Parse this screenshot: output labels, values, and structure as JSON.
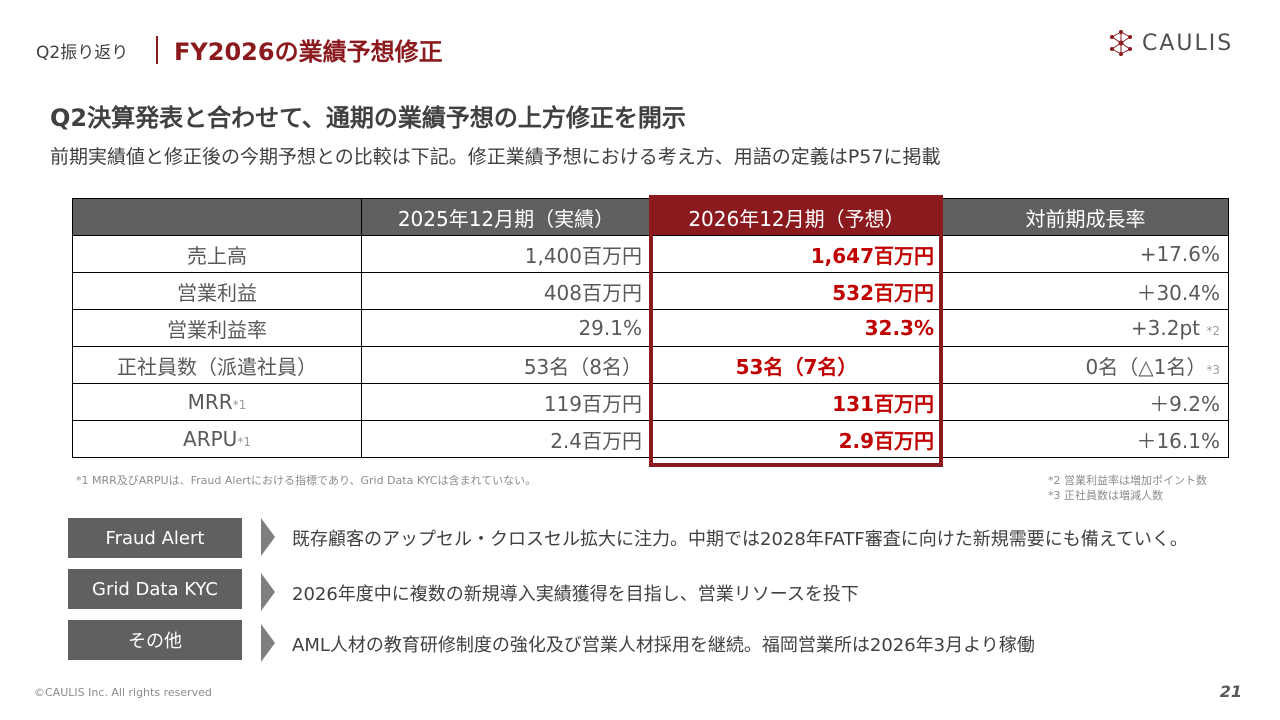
{
  "header": {
    "section": "Q2振り返り",
    "title": "FY2026の業績予想修正",
    "logo_text": "CAULIS"
  },
  "headline": "Q2決算発表と合わせて、通期の業績予想の上方修正を開示",
  "subline": "前期実績値と修正後の今期予想との比較は下記。修正業績予想における考え方、用語の定義はP57に掲載",
  "table": {
    "columns": [
      "",
      "2025年12月期（実績）",
      "2026年12月期（予想）",
      "対前期成長率"
    ],
    "rows": [
      {
        "item": "売上高",
        "item_note": "",
        "actual": "1,400百万円",
        "forecast": "1,647百万円",
        "growth": "+17.6%",
        "growth_note": ""
      },
      {
        "item": "営業利益",
        "item_note": "",
        "actual": "408百万円",
        "forecast": "532百万円",
        "growth": "＋30.4%",
        "growth_note": ""
      },
      {
        "item": "営業利益率",
        "item_note": "",
        "actual": "29.1%",
        "forecast": "32.3%",
        "growth": "+3.2pt",
        "growth_note": "*2"
      },
      {
        "item": "正社員数（派遣社員）",
        "item_note": "",
        "actual": "53名（8名）",
        "forecast": "53名（7名）",
        "growth": "0名（△1名）",
        "growth_note": "*3"
      },
      {
        "item": "MRR",
        "item_note": "*1",
        "actual": "119百万円",
        "forecast": "131百万円",
        "growth": "＋9.2%",
        "growth_note": ""
      },
      {
        "item": "ARPU",
        "item_note": "*1",
        "actual": "2.4百万円",
        "forecast": "2.9百万円",
        "growth": "＋16.1%",
        "growth_note": ""
      }
    ]
  },
  "footnotes": {
    "left": "*1 MRR及びARPUは、Fraud Alertにおける指標であり、Grid Data KYCは含まれていない。",
    "right_1": "*2 営業利益率は増加ポイント数",
    "right_2": "*3 正社員数は増減人数"
  },
  "segments": [
    {
      "label": "Fraud Alert",
      "text": "既存顧客のアップセル・クロスセル拡大に注力。中期では2028年FATF審査に向けた新規需要にも備えていく。"
    },
    {
      "label": "Grid Data KYC",
      "text": "2026年度中に複数の新規導入実績獲得を目指し、営業リソースを投下"
    },
    {
      "label": "その他",
      "text": "AML人材の教育研修制度の強化及び営業人材採用を継続。福岡営業所は2026年3月より稼働"
    }
  ],
  "footer": {
    "copyright": "©CAULIS Inc. All rights reserved",
    "page": "21"
  },
  "colors": {
    "brand": "#8b1a1f",
    "forecast_value": "#c00000",
    "header_gray": "#606060"
  }
}
